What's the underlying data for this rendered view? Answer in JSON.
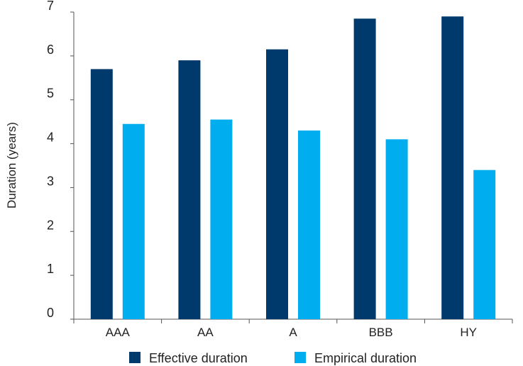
{
  "chart_data": {
    "type": "bar",
    "title": "",
    "xlabel": "",
    "ylabel": "Duration (years)",
    "ylim": [
      0,
      7
    ],
    "yticks": [
      0,
      1,
      2,
      3,
      4,
      5,
      6,
      7
    ],
    "grid": false,
    "legend_position": "bottom",
    "categories": [
      "AAA",
      "AA",
      "A",
      "BBB",
      "HY"
    ],
    "series": [
      {
        "name": "Effective duration",
        "color": "#003a6c",
        "values": [
          5.7,
          5.9,
          6.15,
          6.85,
          6.9
        ]
      },
      {
        "name": "Empirical duration",
        "color": "#00aeef",
        "values": [
          4.45,
          4.55,
          4.3,
          4.1,
          3.4
        ]
      }
    ]
  }
}
